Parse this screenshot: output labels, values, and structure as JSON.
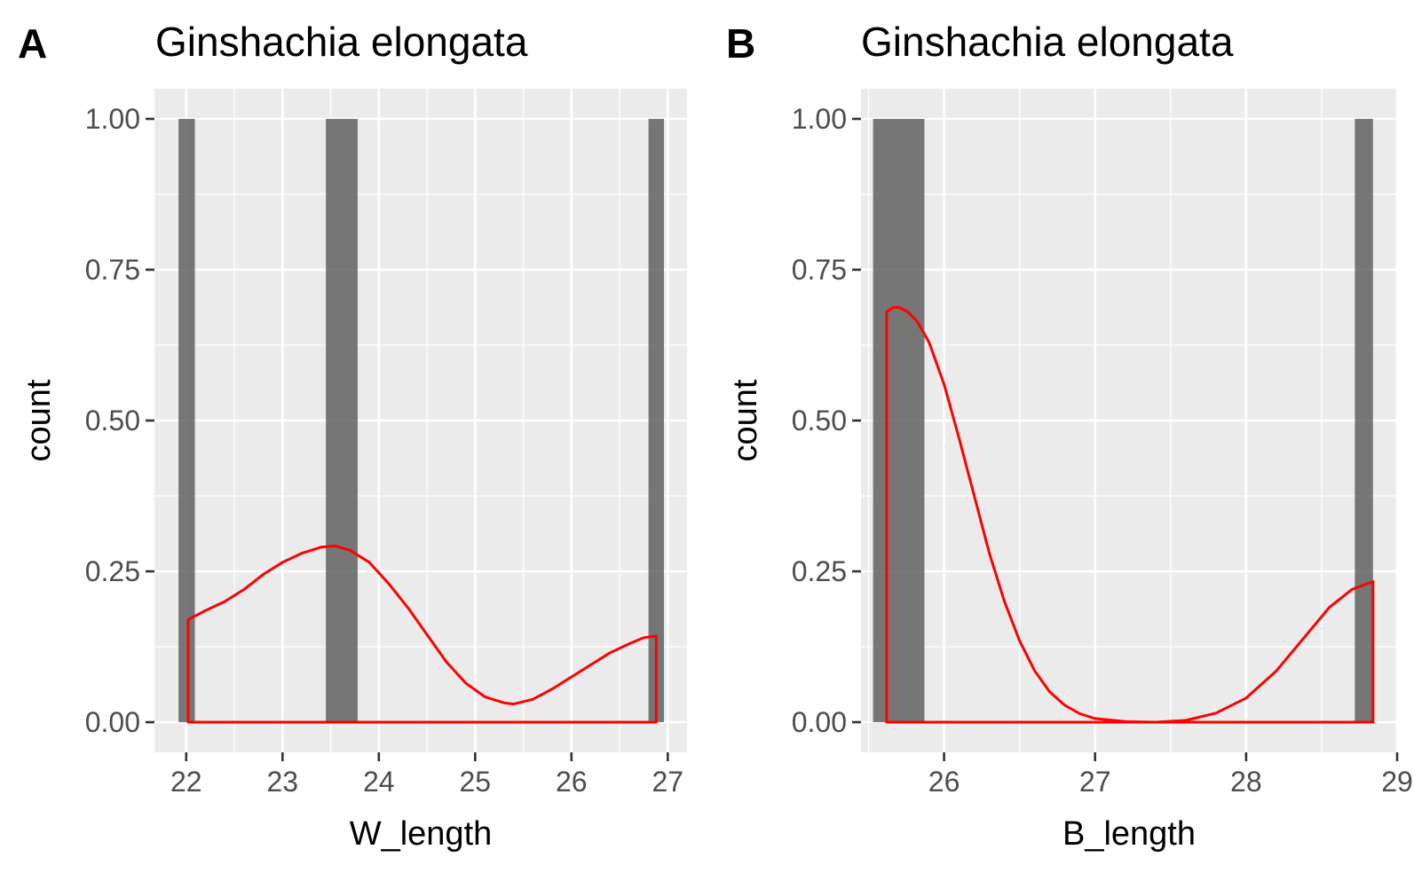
{
  "chart_data": [
    {
      "panel_tag": "A",
      "type": "bar",
      "title": "Ginshachia elongata",
      "xlabel": "W_length",
      "ylabel": "count",
      "xlim": [
        21.67,
        27.2
      ],
      "ylim": [
        -0.05,
        1.05
      ],
      "x_ticks": [
        {
          "value": 22,
          "label": "22"
        },
        {
          "value": 23,
          "label": "23"
        },
        {
          "value": 24,
          "label": "24"
        },
        {
          "value": 25,
          "label": "25"
        },
        {
          "value": 26,
          "label": "26"
        },
        {
          "value": 27,
          "label": "27"
        }
      ],
      "y_ticks": [
        {
          "value": 0,
          "label": "0.00"
        },
        {
          "value": 0.25,
          "label": "0.25"
        },
        {
          "value": 0.5,
          "label": "0.50"
        },
        {
          "value": 0.75,
          "label": "0.75"
        },
        {
          "value": 1,
          "label": "1.00"
        }
      ],
      "grid": true,
      "bars": [
        {
          "x0": 21.92,
          "x1": 22.09,
          "count": 1
        },
        {
          "x0": 23.45,
          "x1": 23.78,
          "count": 1
        },
        {
          "x0": 26.8,
          "x1": 26.96,
          "count": 1
        }
      ],
      "density": {
        "color": "#ff0000",
        "x": [
          22.02,
          22.2,
          22.4,
          22.6,
          22.8,
          23.0,
          23.2,
          23.4,
          23.55,
          23.7,
          23.9,
          24.1,
          24.3,
          24.5,
          24.7,
          24.9,
          25.1,
          25.3,
          25.4,
          25.6,
          25.8,
          26.0,
          26.2,
          26.4,
          26.6,
          26.75,
          26.88
        ],
        "y": [
          0.17,
          0.185,
          0.2,
          0.22,
          0.245,
          0.265,
          0.28,
          0.29,
          0.292,
          0.285,
          0.265,
          0.23,
          0.19,
          0.145,
          0.1,
          0.065,
          0.042,
          0.032,
          0.03,
          0.038,
          0.055,
          0.075,
          0.095,
          0.115,
          0.13,
          0.14,
          0.143
        ]
      }
    },
    {
      "panel_tag": "B",
      "type": "bar",
      "title": "Ginshachia elongata",
      "xlabel": "B_length",
      "ylabel": "count",
      "xlim": [
        25.45,
        29.0
      ],
      "ylim": [
        -0.05,
        1.05
      ],
      "x_ticks": [
        {
          "value": 26,
          "label": "26"
        },
        {
          "value": 27,
          "label": "27"
        },
        {
          "value": 28,
          "label": "28"
        },
        {
          "value": 29,
          "label": "29"
        }
      ],
      "y_ticks": [
        {
          "value": 0,
          "label": "0.00"
        },
        {
          "value": 0.25,
          "label": "0.25"
        },
        {
          "value": 0.5,
          "label": "0.50"
        },
        {
          "value": 0.75,
          "label": "0.75"
        },
        {
          "value": 1,
          "label": "1.00"
        }
      ],
      "grid": true,
      "bars": [
        {
          "x0": 25.53,
          "x1": 25.87,
          "count": 1
        },
        {
          "x0": 28.72,
          "x1": 28.84,
          "count": 1
        }
      ],
      "density": {
        "color": "#ff0000",
        "x": [
          25.62,
          25.66,
          25.7,
          25.76,
          25.82,
          25.9,
          26.0,
          26.1,
          26.2,
          26.3,
          26.4,
          26.5,
          26.6,
          26.7,
          26.8,
          26.9,
          27.0,
          27.2,
          27.4,
          27.6,
          27.8,
          28.0,
          28.2,
          28.4,
          28.55,
          28.7,
          28.84
        ],
        "y": [
          0.68,
          0.687,
          0.688,
          0.68,
          0.665,
          0.63,
          0.56,
          0.47,
          0.375,
          0.28,
          0.2,
          0.135,
          0.085,
          0.05,
          0.028,
          0.014,
          0.006,
          0.001,
          0.0,
          0.003,
          0.015,
          0.04,
          0.085,
          0.145,
          0.19,
          0.22,
          0.233
        ]
      }
    }
  ]
}
